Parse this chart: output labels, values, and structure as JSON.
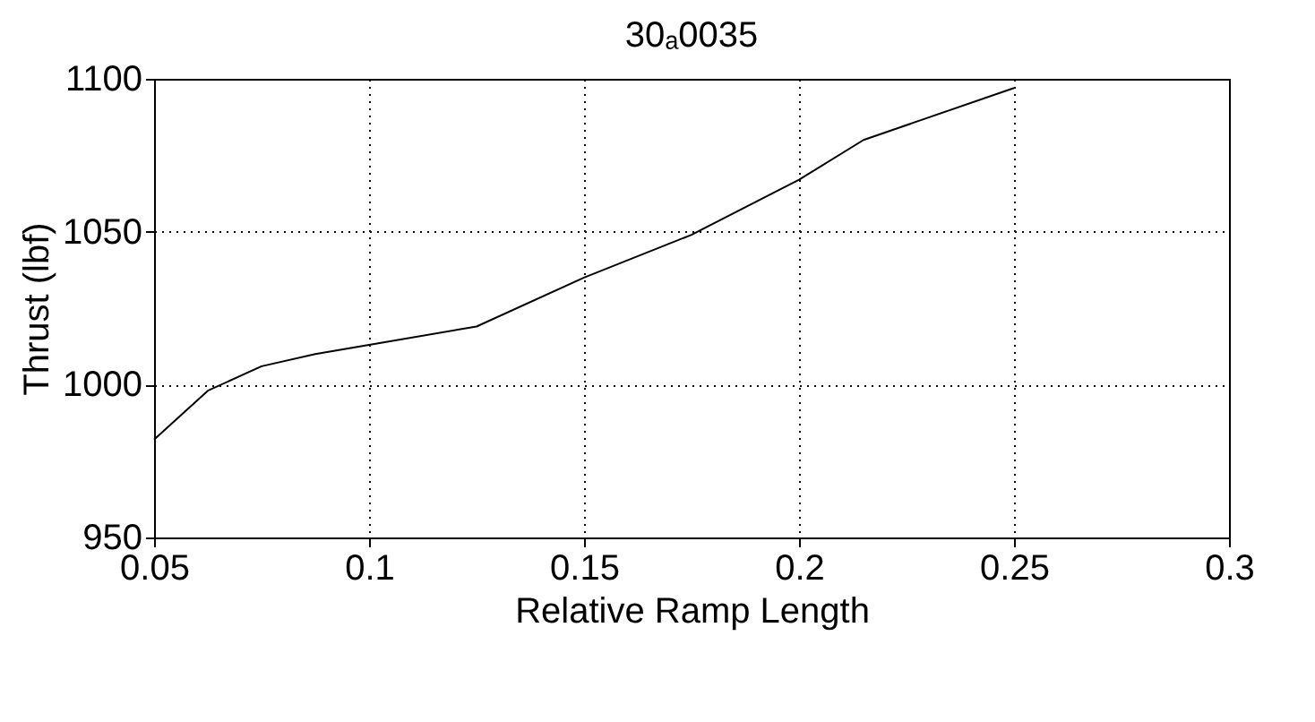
{
  "chart_data": {
    "type": "line",
    "title": "30ₐ0035",
    "xlabel": "Relative Ramp Length",
    "ylabel": "Thrust (lbf)",
    "x": [
      0.05,
      0.0625,
      0.075,
      0.0875,
      0.1,
      0.125,
      0.15,
      0.175,
      0.2,
      0.215,
      0.25
    ],
    "series": [
      {
        "color": "#000000",
        "values": [
          982,
          998,
          1006,
          1010,
          1013,
          1019,
          1035,
          1049,
          1067,
          1080,
          1097
        ]
      }
    ],
    "xlim": [
      0.05,
      0.3
    ],
    "xticks": [
      0.05,
      0.1,
      0.15,
      0.2,
      0.25,
      0.3
    ],
    "ylim": [
      950,
      1100
    ],
    "yticks": [
      950,
      1000,
      1050,
      1100
    ],
    "grid": true,
    "marker": "none",
    "line_style": "solid"
  }
}
